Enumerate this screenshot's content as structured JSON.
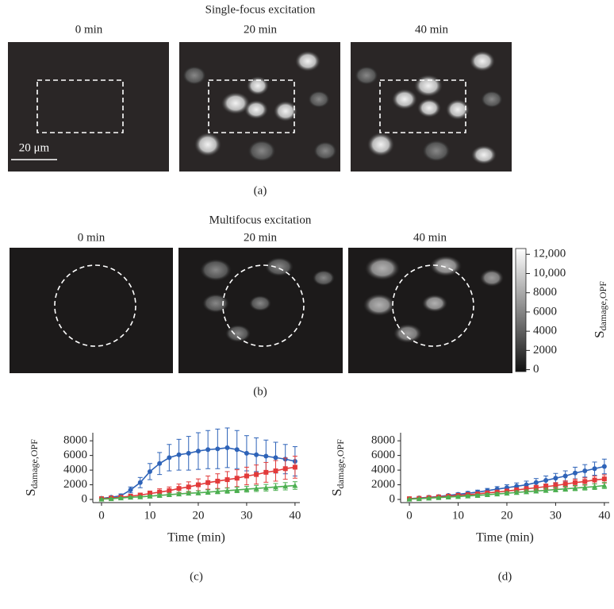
{
  "figure": {
    "a": {
      "title": "Single-focus excitation",
      "times": [
        "0 min",
        "20 min",
        "40 min"
      ],
      "scale_bar": "20 μm",
      "label": "(a)"
    },
    "b": {
      "title": "Multifocus excitation",
      "times": [
        "0 min",
        "20 min",
        "40 min"
      ],
      "label": "(b)",
      "colorbar": {
        "label": "S",
        "label_sub": "damage,OPF",
        "lim": [
          -200,
          12600
        ],
        "ticks": [
          0,
          2000,
          4000,
          6000,
          8000,
          {
            "value": 10000,
            "label": "10,000"
          },
          {
            "value": 12000,
            "label": "12,000"
          }
        ]
      }
    }
  },
  "chart_data": [
    {
      "type": "line",
      "label": "(c)",
      "xlabel": "Time (min)",
      "ylabel": "S",
      "ylabel_sub": "damage,OPF",
      "xlim": [
        -1.8,
        41
      ],
      "ylim": [
        -430,
        9100
      ],
      "xticks": [
        0,
        10,
        20,
        30,
        40
      ],
      "yticks": [
        0,
        2000,
        4000,
        6000,
        8000
      ],
      "x": [
        0,
        2,
        4,
        6,
        8,
        10,
        12,
        14,
        16,
        18,
        20,
        22,
        24,
        26,
        28,
        30,
        32,
        34,
        36,
        38,
        40
      ],
      "series": [
        {
          "color": "#2e63b8",
          "marker": "circle",
          "values": [
            150,
            300,
            500,
            1300,
            2300,
            3800,
            4900,
            5700,
            6100,
            6300,
            6600,
            6800,
            6900,
            7050,
            6800,
            6300,
            6100,
            5900,
            5700,
            5500,
            5200
          ],
          "errors": [
            100,
            150,
            250,
            400,
            700,
            1100,
            1500,
            1800,
            2100,
            2300,
            2500,
            2600,
            2700,
            2700,
            2600,
            2400,
            2300,
            2200,
            2100,
            2000,
            2000
          ]
        },
        {
          "color": "#e23a3a",
          "marker": "square",
          "values": [
            100,
            200,
            300,
            450,
            600,
            800,
            1000,
            1200,
            1500,
            1700,
            2000,
            2300,
            2500,
            2700,
            2900,
            3200,
            3400,
            3700,
            3900,
            4200,
            4400
          ],
          "errors": [
            50,
            100,
            150,
            200,
            250,
            350,
            450,
            500,
            600,
            700,
            800,
            900,
            1000,
            1100,
            1150,
            1200,
            1300,
            1350,
            1400,
            1450,
            1500
          ]
        },
        {
          "color": "#4caf50",
          "marker": "triangle",
          "values": [
            50,
            100,
            200,
            300,
            350,
            450,
            550,
            650,
            750,
            850,
            900,
            1000,
            1100,
            1200,
            1300,
            1400,
            1500,
            1600,
            1700,
            1800,
            1900
          ],
          "errors": [
            30,
            50,
            80,
            100,
            120,
            150,
            180,
            200,
            220,
            250,
            270,
            300,
            320,
            350,
            370,
            400,
            420,
            450,
            470,
            500,
            520
          ]
        }
      ]
    },
    {
      "type": "line",
      "label": "(d)",
      "xlabel": "Time (min)",
      "ylabel": "S",
      "ylabel_sub": "damage,OPF",
      "xlim": [
        -1.8,
        41
      ],
      "ylim": [
        -430,
        9100
      ],
      "xticks": [
        0,
        10,
        20,
        30,
        40
      ],
      "yticks": [
        0,
        2000,
        4000,
        6000,
        8000
      ],
      "x": [
        0,
        2,
        4,
        6,
        8,
        10,
        12,
        14,
        16,
        18,
        20,
        22,
        24,
        26,
        28,
        30,
        32,
        34,
        36,
        38,
        40
      ],
      "series": [
        {
          "color": "#2e63b8",
          "marker": "circle",
          "values": [
            100,
            200,
            300,
            400,
            550,
            700,
            850,
            1000,
            1200,
            1400,
            1600,
            1800,
            2000,
            2300,
            2600,
            2900,
            3200,
            3600,
            3900,
            4200,
            4500
          ],
          "errors": [
            50,
            80,
            100,
            130,
            160,
            200,
            230,
            270,
            300,
            350,
            400,
            450,
            500,
            550,
            600,
            650,
            700,
            800,
            850,
            900,
            1000
          ]
        },
        {
          "color": "#e23a3a",
          "marker": "square",
          "values": [
            100,
            150,
            250,
            350,
            450,
            550,
            650,
            750,
            900,
            1000,
            1150,
            1300,
            1450,
            1600,
            1750,
            1900,
            2100,
            2300,
            2450,
            2650,
            2800
          ],
          "errors": [
            40,
            60,
            80,
            100,
            120,
            140,
            160,
            180,
            200,
            220,
            250,
            280,
            300,
            330,
            360,
            400,
            430,
            460,
            500,
            530,
            560
          ]
        },
        {
          "color": "#4caf50",
          "marker": "triangle",
          "values": [
            50,
            100,
            180,
            250,
            330,
            400,
            480,
            550,
            650,
            750,
            850,
            950,
            1050,
            1150,
            1250,
            1350,
            1450,
            1550,
            1650,
            1750,
            1900
          ],
          "errors": [
            30,
            40,
            60,
            80,
            100,
            110,
            130,
            150,
            170,
            190,
            210,
            230,
            250,
            270,
            290,
            310,
            330,
            350,
            370,
            390,
            410
          ]
        }
      ]
    }
  ]
}
